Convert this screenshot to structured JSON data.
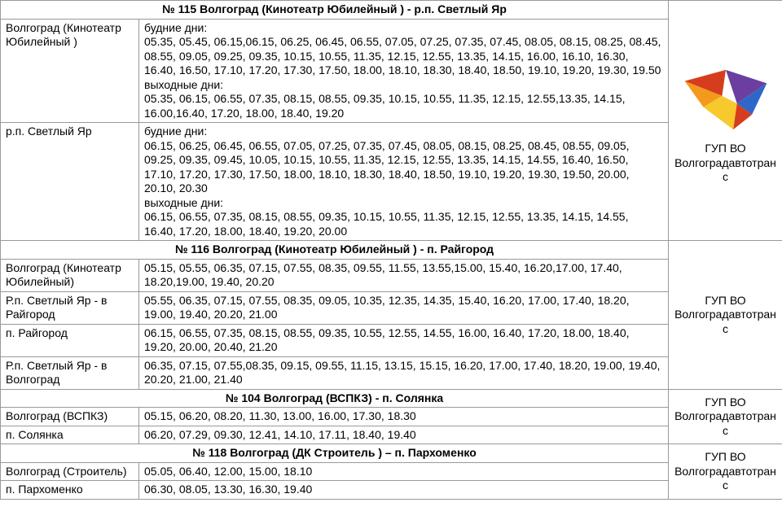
{
  "routes": [
    {
      "title": "№ 115 Волгоград (Кинотеатр Юбилейный ) - р.п. Светлый Яр",
      "operator": "ГУП ВО Волгоградавтотранс",
      "show_logo": true,
      "rows": [
        {
          "stop": "Волгоград (Кинотеатр Юбилейный )",
          "text": "будние дни:\n05.35, 05.45, 06.15,06.15, 06.25, 06.45, 06.55, 07.05, 07.25, 07.35, 07.45, 08.05, 08.15, 08.25, 08.45, 08.55, 09.05, 09.25, 09.35, 10.15, 10.55, 11.35, 12.15, 12.55, 13.35, 14.15, 16.00, 16.10, 16.30, 16.40, 16.50, 17.10, 17.20, 17.30, 17.50, 18.00, 18.10, 18.30, 18.40, 18.50, 19.10, 19.20, 19.30, 19.50\nвыходные дни:\n05.35, 06.15, 06.55, 07.35, 08.15, 08.55, 09.35, 10.15, 10.55, 11.35, 12.15, 12.55,13.35, 14.15, 16.00,16.40, 17.20, 18.00, 18.40, 19.20"
        },
        {
          "stop": "р.п. Светлый Яр",
          "text": "будние дни:\n06.15, 06.25, 06.45, 06.55, 07.05, 07.25, 07.35, 07.45, 08.05, 08.15, 08.25, 08.45, 08.55, 09.05, 09.25, 09.35, 09.45, 10.05, 10.15, 10.55, 11.35, 12.15, 12.55, 13.35, 14.15, 14.55, 16.40, 16.50, 17.10, 17.20, 17.30, 17.50, 18.00, 18.10, 18.30, 18.40, 18.50, 19.10, 19.20, 19.30, 19.50, 20.00, 20.10, 20.30\nвыходные дни:\n06.15, 06.55, 07.35, 08.15, 08.55, 09.35, 10.15, 10.55, 11.35, 12.15, 12.55, 13.35, 14.15, 14.55, 16.40, 17.20, 18.00, 18.40, 19.20, 20.00"
        }
      ]
    },
    {
      "title": "№ 116 Волгоград (Кинотеатр Юбилейный ) -  п. Райгород",
      "operator": "ГУП ВО Волгоградавтотранс",
      "show_logo": false,
      "rows": [
        {
          "stop": "Волгоград (Кинотеатр Юбилейный)",
          "text": "05.15, 05.55, 06.35, 07.15, 07.55, 08.35, 09.55, 11.55, 13.55,15.00, 15.40, 16.20,17.00, 17.40, 18.20,19.00, 19.40, 20.20"
        },
        {
          "stop": "Р.п. Светлый Яр - в Райгород",
          "text": "05.55, 06.35, 07.15, 07.55, 08.35, 09.05, 10.35, 12.35, 14.35, 15.40, 16.20, 17.00, 17.40, 18.20, 19.00, 19.40, 20.20, 21.00"
        },
        {
          "stop": "п. Райгород",
          "text": "06.15, 06.55, 07.35, 08.15, 08.55, 09.35, 10.55, 12.55, 14.55, 16.00, 16.40, 17.20, 18.00, 18.40, 19.20, 20.00, 20.40, 21.20"
        },
        {
          "stop": "Р.п. Светлый Яр - в Волгоград",
          "text": "06.35, 07.15, 07.55,08.35, 09.15, 09.55, 11.15, 13.15, 15.15, 16.20, 17.00, 17.40, 18.20, 19.00, 19.40, 20.20, 21.00, 21.40"
        }
      ]
    },
    {
      "title": "№ 104 Волгоград (ВСПКЗ) - п. Солянка",
      "operator": "ГУП ВО Волгоградавтотранс",
      "show_logo": false,
      "rows": [
        {
          "stop": "Волгоград (ВСПКЗ)",
          "text": "05.15, 06.20, 08.20, 11.30, 13.00, 16.00, 17.30, 18.30"
        },
        {
          "stop": "п. Солянка",
          "text": "06.20, 07.29, 09.30, 12.41, 14.10, 17.11, 18.40, 19.40"
        }
      ]
    },
    {
      "title": "№ 118 Волгоград (ДК Строитель ) – п. Пархоменко",
      "operator": "ГУП ВО Волгоградавтотранс",
      "show_logo": false,
      "rows": [
        {
          "stop": "Волгоград (Строитель)",
          "text": "05.05, 06.40, 12.00, 15.00, 18.10"
        },
        {
          "stop": "п. Пархоменко",
          "text": "06.30, 08.05, 13.30, 16.30, 19.40"
        }
      ]
    }
  ],
  "logo_colors": {
    "red": "#d63d1e",
    "orange": "#f39a1c",
    "yellow": "#f7c92c",
    "purple": "#6b3fa0",
    "blue": "#2f67c9"
  }
}
